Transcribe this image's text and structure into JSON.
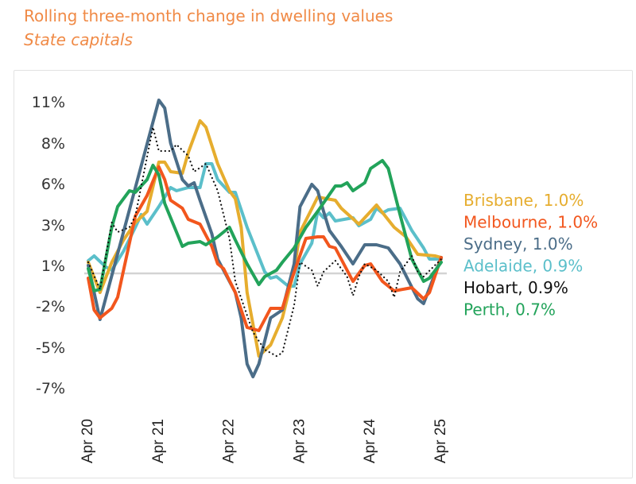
{
  "header": {
    "title": "Rolling three-month change in dwelling values",
    "subtitle": "State capitals"
  },
  "chart_data": {
    "type": "line",
    "title": "Rolling three-month change in dwelling values",
    "subtitle": "State capitals",
    "xlabel": "",
    "ylabel": "",
    "xlim": [
      "2020-04",
      "2025-04"
    ],
    "ylim": [
      -7.5,
      11.5
    ],
    "grid": false,
    "zero_line": true,
    "legend_placement": "right",
    "x_ticks": [
      {
        "value": "2020-04",
        "label": "Apr 20"
      },
      {
        "value": "2021-04",
        "label": "Apr 21"
      },
      {
        "value": "2022-04",
        "label": "Apr 22"
      },
      {
        "value": "2023-04",
        "label": "Apr 23"
      },
      {
        "value": "2024-04",
        "label": "Apr 24"
      },
      {
        "value": "2025-04",
        "label": "Apr 25"
      }
    ],
    "y_ticks": [
      {
        "value": 10.8,
        "label": "11%"
      },
      {
        "value": 8.2,
        "label": "8%"
      },
      {
        "value": 5.65,
        "label": "6%"
      },
      {
        "value": 3.05,
        "label": "3%"
      },
      {
        "value": 0.5,
        "label": "1%"
      },
      {
        "value": -2.05,
        "label": "-2%"
      },
      {
        "value": -4.65,
        "label": "-5%"
      },
      {
        "value": -7.2,
        "label": "-7%"
      }
    ],
    "series": [
      {
        "name": "Adelaide",
        "legend": "Adelaide, 0.9%",
        "color": "#5bbfca",
        "style": "solid",
        "points": [
          [
            "2020-04",
            0.8
          ],
          [
            "2020-05",
            1.1
          ],
          [
            "2020-07",
            0.4
          ],
          [
            "2020-08",
            0.2
          ],
          [
            "2020-10",
            1.4
          ],
          [
            "2020-12",
            2.9
          ],
          [
            "2021-01",
            3.7
          ],
          [
            "2021-02",
            3.1
          ],
          [
            "2021-04",
            4.2
          ],
          [
            "2021-06",
            5.4
          ],
          [
            "2021-07",
            5.2
          ],
          [
            "2021-09",
            5.4
          ],
          [
            "2021-11",
            5.4
          ],
          [
            "2021-12",
            6.9
          ],
          [
            "2022-01",
            6.9
          ],
          [
            "2022-02",
            5.9
          ],
          [
            "2022-04",
            5.1
          ],
          [
            "2022-05",
            5.1
          ],
          [
            "2022-07",
            2.9
          ],
          [
            "2022-10",
            0.1
          ],
          [
            "2022-11",
            -0.3
          ],
          [
            "2022-12",
            -0.2
          ],
          [
            "2023-02",
            -0.8
          ],
          [
            "2023-03",
            -0.8
          ],
          [
            "2023-04",
            0.6
          ],
          [
            "2023-06",
            1.9
          ],
          [
            "2023-07",
            3.9
          ],
          [
            "2023-08",
            3.5
          ],
          [
            "2023-09",
            3.8
          ],
          [
            "2023-10",
            3.3
          ],
          [
            "2024-01",
            3.5
          ],
          [
            "2024-02",
            3.0
          ],
          [
            "2024-04",
            3.4
          ],
          [
            "2024-05",
            4.1
          ],
          [
            "2024-06",
            3.8
          ],
          [
            "2024-07",
            4.0
          ],
          [
            "2024-09",
            4.1
          ],
          [
            "2024-11",
            2.7
          ],
          [
            "2025-01",
            1.6
          ],
          [
            "2025-02",
            0.9
          ],
          [
            "2025-04",
            0.9
          ]
        ]
      },
      {
        "name": "Brisbane",
        "legend": "Brisbane, 1.0%",
        "color": "#e6ad2e",
        "style": "solid",
        "points": [
          [
            "2020-04",
            0.7
          ],
          [
            "2020-06",
            -1.2
          ],
          [
            "2020-08",
            0.7
          ],
          [
            "2020-10",
            2.1
          ],
          [
            "2020-12",
            3.2
          ],
          [
            "2021-02",
            3.9
          ],
          [
            "2021-04",
            7.0
          ],
          [
            "2021-05",
            7.0
          ],
          [
            "2021-06",
            6.4
          ],
          [
            "2021-08",
            6.3
          ],
          [
            "2021-09",
            7.6
          ],
          [
            "2021-11",
            9.6
          ],
          [
            "2021-12",
            9.2
          ],
          [
            "2022-02",
            6.9
          ],
          [
            "2022-04",
            5.2
          ],
          [
            "2022-05",
            4.7
          ],
          [
            "2022-06",
            2.9
          ],
          [
            "2022-07",
            -1.2
          ],
          [
            "2022-09",
            -5.2
          ],
          [
            "2022-11",
            -4.5
          ],
          [
            "2023-01",
            -2.8
          ],
          [
            "2023-03",
            0.2
          ],
          [
            "2023-04",
            2.6
          ],
          [
            "2023-07",
            4.8
          ],
          [
            "2023-10",
            4.6
          ],
          [
            "2023-11",
            4.1
          ],
          [
            "2024-02",
            3.1
          ],
          [
            "2024-05",
            4.3
          ],
          [
            "2024-08",
            2.9
          ],
          [
            "2024-10",
            2.3
          ],
          [
            "2024-12",
            1.2
          ],
          [
            "2025-03",
            1.1
          ],
          [
            "2025-04",
            1.0
          ]
        ]
      },
      {
        "name": "Sydney",
        "legend": "Sydney, 1.0%",
        "color": "#4b6d88",
        "style": "solid",
        "points": [
          [
            "2020-04",
            0.5
          ],
          [
            "2020-06",
            -2.9
          ],
          [
            "2021-04",
            10.9
          ],
          [
            "2021-05",
            10.4
          ],
          [
            "2021-06",
            8.2
          ],
          [
            "2021-08",
            5.9
          ],
          [
            "2021-09",
            5.5
          ],
          [
            "2021-10",
            5.7
          ],
          [
            "2021-11",
            4.6
          ],
          [
            "2022-01",
            2.5
          ],
          [
            "2022-02",
            0.9
          ],
          [
            "2022-05",
            -1.2
          ],
          [
            "2022-06",
            -2.8
          ],
          [
            "2022-07",
            -5.7
          ],
          [
            "2022-08",
            -6.5
          ],
          [
            "2022-09",
            -5.7
          ],
          [
            "2022-11",
            -2.8
          ],
          [
            "2023-01",
            -2.3
          ],
          [
            "2023-03",
            0.6
          ],
          [
            "2023-04",
            4.2
          ],
          [
            "2023-06",
            5.6
          ],
          [
            "2023-07",
            5.2
          ],
          [
            "2023-08",
            3.9
          ],
          [
            "2023-09",
            2.7
          ],
          [
            "2023-11",
            1.7
          ],
          [
            "2024-01",
            0.6
          ],
          [
            "2024-03",
            1.8
          ],
          [
            "2024-05",
            1.8
          ],
          [
            "2024-07",
            1.6
          ],
          [
            "2024-09",
            0.6
          ],
          [
            "2024-12",
            -1.6
          ],
          [
            "2025-01",
            -1.9
          ],
          [
            "2025-04",
            1.0
          ]
        ]
      },
      {
        "name": "Melbourne",
        "legend": "Melbourne, 1.0%",
        "color": "#f2561d",
        "style": "solid",
        "points": [
          [
            "2020-04",
            -0.3
          ],
          [
            "2020-05",
            -2.3
          ],
          [
            "2020-06",
            -2.8
          ],
          [
            "2020-08",
            -2.2
          ],
          [
            "2020-09",
            -1.5
          ],
          [
            "2020-11",
            1.9
          ],
          [
            "2020-12",
            3.6
          ],
          [
            "2021-02",
            4.9
          ],
          [
            "2021-04",
            6.7
          ],
          [
            "2021-05",
            5.9
          ],
          [
            "2021-06",
            4.6
          ],
          [
            "2021-08",
            4.1
          ],
          [
            "2021-09",
            3.4
          ],
          [
            "2021-11",
            3.1
          ],
          [
            "2022-01",
            1.7
          ],
          [
            "2022-02",
            0.6
          ],
          [
            "2022-03",
            0.3
          ],
          [
            "2022-05",
            -1.2
          ],
          [
            "2022-07",
            -3.4
          ],
          [
            "2022-09",
            -3.6
          ],
          [
            "2022-11",
            -2.2
          ],
          [
            "2023-01",
            -2.2
          ],
          [
            "2023-02",
            -1.0
          ],
          [
            "2023-05",
            2.2
          ],
          [
            "2023-07",
            2.3
          ],
          [
            "2023-08",
            2.3
          ],
          [
            "2023-09",
            1.7
          ],
          [
            "2023-10",
            1.6
          ],
          [
            "2024-01",
            -0.5
          ],
          [
            "2024-03",
            0.5
          ],
          [
            "2024-04",
            0.6
          ],
          [
            "2024-06",
            -0.5
          ],
          [
            "2024-08",
            -1.1
          ],
          [
            "2024-11",
            -0.9
          ],
          [
            "2025-01",
            -1.6
          ],
          [
            "2025-02",
            -1.2
          ],
          [
            "2025-04",
            1.0
          ]
        ]
      },
      {
        "name": "Perth",
        "legend": "Perth, 0.7%",
        "color": "#22a35a",
        "style": "solid",
        "points": [
          [
            "2020-04",
            0.3
          ],
          [
            "2020-05",
            -1.1
          ],
          [
            "2020-06",
            -1.0
          ],
          [
            "2020-08",
            2.9
          ],
          [
            "2020-09",
            4.2
          ],
          [
            "2020-11",
            5.2
          ],
          [
            "2020-12",
            5.1
          ],
          [
            "2021-02",
            5.9
          ],
          [
            "2021-03",
            6.8
          ],
          [
            "2021-04",
            6.2
          ],
          [
            "2021-05",
            4.4
          ],
          [
            "2021-07",
            2.6
          ],
          [
            "2021-08",
            1.7
          ],
          [
            "2021-09",
            1.9
          ],
          [
            "2021-11",
            2.0
          ],
          [
            "2021-12",
            1.8
          ],
          [
            "2022-02",
            2.3
          ],
          [
            "2022-04",
            2.9
          ],
          [
            "2022-05",
            2.1
          ],
          [
            "2022-07",
            0.6
          ],
          [
            "2022-09",
            -0.7
          ],
          [
            "2022-10",
            -0.2
          ],
          [
            "2022-12",
            0.2
          ],
          [
            "2023-01",
            0.7
          ],
          [
            "2023-03",
            1.6
          ],
          [
            "2023-05",
            2.9
          ],
          [
            "2023-07",
            3.9
          ],
          [
            "2023-10",
            5.5
          ],
          [
            "2023-11",
            5.5
          ],
          [
            "2023-12",
            5.7
          ],
          [
            "2024-01",
            5.2
          ],
          [
            "2024-03",
            5.7
          ],
          [
            "2024-04",
            6.6
          ],
          [
            "2024-06",
            7.1
          ],
          [
            "2024-07",
            6.6
          ],
          [
            "2024-09",
            3.7
          ],
          [
            "2024-11",
            0.9
          ],
          [
            "2025-01",
            -0.5
          ],
          [
            "2025-02",
            -0.3
          ],
          [
            "2025-04",
            0.7
          ]
        ]
      },
      {
        "name": "Hobart",
        "legend": "Hobart, 0.9%",
        "color": "#111111",
        "style": "dotted",
        "points": [
          [
            "2020-04",
            0.7
          ],
          [
            "2020-06",
            -1.0
          ],
          [
            "2020-08",
            3.2
          ],
          [
            "2020-09",
            2.6
          ],
          [
            "2020-11",
            2.9
          ],
          [
            "2020-12",
            3.6
          ],
          [
            "2021-03",
            9.2
          ],
          [
            "2021-04",
            7.7
          ],
          [
            "2021-06",
            7.7
          ],
          [
            "2021-07",
            8.1
          ],
          [
            "2021-09",
            7.4
          ],
          [
            "2021-10",
            6.4
          ],
          [
            "2021-12",
            6.9
          ],
          [
            "2022-02",
            5.2
          ],
          [
            "2022-04",
            2.2
          ],
          [
            "2022-05",
            -0.5
          ],
          [
            "2022-08",
            -3.7
          ],
          [
            "2022-10",
            -4.8
          ],
          [
            "2022-12",
            -5.2
          ],
          [
            "2023-01",
            -5.0
          ],
          [
            "2023-03",
            -2.0
          ],
          [
            "2023-04",
            0.7
          ],
          [
            "2023-06",
            0.2
          ],
          [
            "2023-07",
            -0.8
          ],
          [
            "2023-08",
            0.1
          ],
          [
            "2023-10",
            0.8
          ],
          [
            "2023-12",
            -0.2
          ],
          [
            "2024-01",
            -1.4
          ],
          [
            "2024-02",
            -0.2
          ],
          [
            "2024-03",
            0.6
          ],
          [
            "2024-05",
            0.2
          ],
          [
            "2024-07",
            -0.5
          ],
          [
            "2024-08",
            -1.5
          ],
          [
            "2024-09",
            0.1
          ],
          [
            "2024-11",
            1.1
          ],
          [
            "2024-12",
            0.1
          ],
          [
            "2025-01",
            -0.2
          ],
          [
            "2025-04",
            0.9
          ]
        ]
      }
    ],
    "legend_order": [
      "Brisbane",
      "Melbourne",
      "Sydney",
      "Adelaide",
      "Hobart",
      "Perth"
    ]
  }
}
